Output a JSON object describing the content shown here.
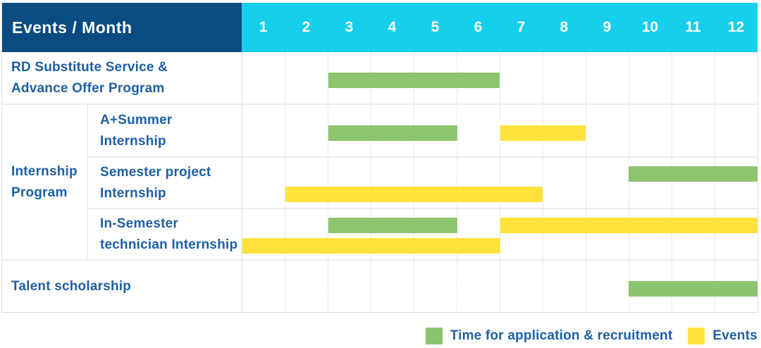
{
  "colors": {
    "header_bg": "#0a4c81",
    "months_bg": "#16cfec",
    "green": "#8cc56d",
    "yellow": "#ffe23c",
    "label_text": "#1e5fa3",
    "header_text": "#ffffff"
  },
  "header": {
    "title": "Events / Month",
    "months": [
      "1",
      "2",
      "3",
      "4",
      "5",
      "6",
      "7",
      "8",
      "9",
      "10",
      "11",
      "12"
    ]
  },
  "chart_data": {
    "type": "gantt",
    "unit": "month",
    "x_domain": [
      1,
      12
    ],
    "grid": "dotted-vertical",
    "legend_position": "bottom-right",
    "legend": [
      {
        "key": "application",
        "label": "Time for application & recruitment",
        "color_key": "green"
      },
      {
        "key": "events",
        "label": "Events",
        "color_key": "yellow"
      }
    ],
    "sections": [
      {
        "id": "rd-substitute",
        "label_lines": [
          "RD Substitute Service &",
          "Advance Offer Program"
        ],
        "rows": [
          {
            "id": "rd-substitute",
            "lanes": 1,
            "bars": [
              {
                "series": "application",
                "start": 3,
                "end": 6,
                "lane": "c"
              }
            ]
          }
        ]
      },
      {
        "id": "internship-program",
        "group_label_lines": [
          "Internship",
          "Program"
        ],
        "rows": [
          {
            "id": "a-plus-summer-internship",
            "label_lines": [
              "A+Summer",
              "Internship"
            ],
            "lanes": 1,
            "bars": [
              {
                "series": "application",
                "start": 3,
                "end": 5,
                "lane": "c"
              },
              {
                "series": "events",
                "start": 7,
                "end": 8,
                "lane": "c"
              }
            ]
          },
          {
            "id": "semester-project-internship",
            "label_lines": [
              "Semester project",
              "Internship"
            ],
            "lanes": 2,
            "bars": [
              {
                "series": "application",
                "start": 10,
                "end": 12,
                "lane": 0
              },
              {
                "series": "events",
                "start": 2,
                "end": 7,
                "lane": 1
              }
            ]
          },
          {
            "id": "in-semester-technician-internship",
            "label_lines": [
              "In-Semester",
              "technician Internship"
            ],
            "lanes": 2,
            "bars": [
              {
                "series": "application",
                "start": 3,
                "end": 5,
                "lane": 0
              },
              {
                "series": "events",
                "start": 7,
                "end": 12,
                "lane": 0
              },
              {
                "series": "events",
                "start": 1,
                "end": 6,
                "lane": 1
              }
            ]
          }
        ]
      },
      {
        "id": "talent-scholarship",
        "label_lines": [
          "Talent scholarship"
        ],
        "rows": [
          {
            "id": "talent-scholarship",
            "lanes": 1,
            "bars": [
              {
                "series": "application",
                "start": 10,
                "end": 12,
                "lane": "c"
              }
            ]
          }
        ]
      }
    ]
  }
}
